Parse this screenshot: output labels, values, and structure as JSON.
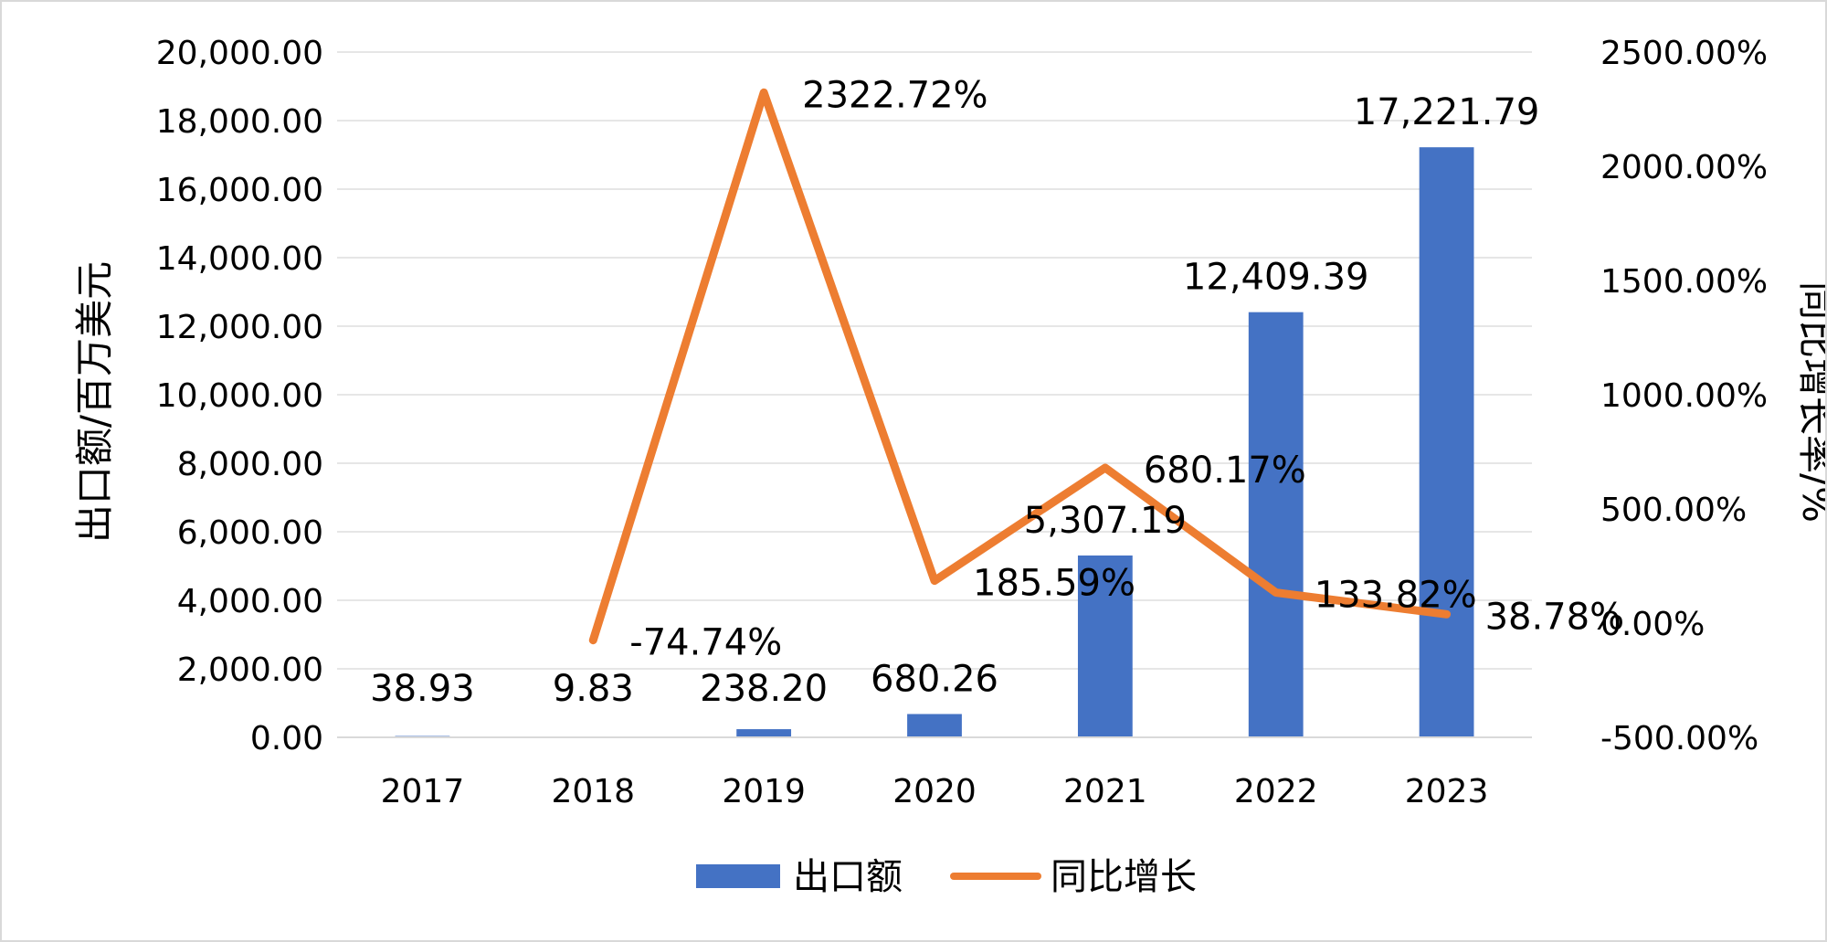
{
  "chart_data": {
    "type": "bar",
    "categories": [
      "2017",
      "2018",
      "2019",
      "2020",
      "2021",
      "2022",
      "2023"
    ],
    "series": [
      {
        "name": "出口额",
        "type": "bar",
        "axis": "left",
        "color": "#4472C4",
        "values": [
          38.93,
          9.83,
          238.2,
          680.26,
          5307.19,
          12409.39,
          17221.79
        ],
        "labels": [
          "38.93",
          "9.83",
          "238.20",
          "680.26",
          "5,307.19",
          "12,409.39",
          "17,221.79"
        ]
      },
      {
        "name": "同比增长",
        "type": "line",
        "axis": "right",
        "color": "#ED7D31",
        "values": [
          null,
          -74.74,
          2322.72,
          185.59,
          680.17,
          133.82,
          38.78
        ],
        "labels": [
          null,
          "-74.74%",
          "2322.72%",
          "185.59%",
          "680.17%",
          "133.82%",
          "38.78%"
        ]
      }
    ],
    "ylabel": "出口额/百万美元",
    "y2label": "同比增长率/%",
    "ylim": [
      0,
      20000
    ],
    "y2lim": [
      -500,
      2500
    ],
    "yticks": [
      "0.00",
      "2,000.00",
      "4,000.00",
      "6,000.00",
      "8,000.00",
      "10,000.00",
      "12,000.00",
      "14,000.00",
      "16,000.00",
      "18,000.00",
      "20,000.00"
    ],
    "y2ticks": [
      "-500.00%",
      "0.00%",
      "500.00%",
      "1000.00%",
      "1500.00%",
      "2000.00%",
      "2500.00%"
    ],
    "grid": true,
    "legend": "bottom"
  }
}
